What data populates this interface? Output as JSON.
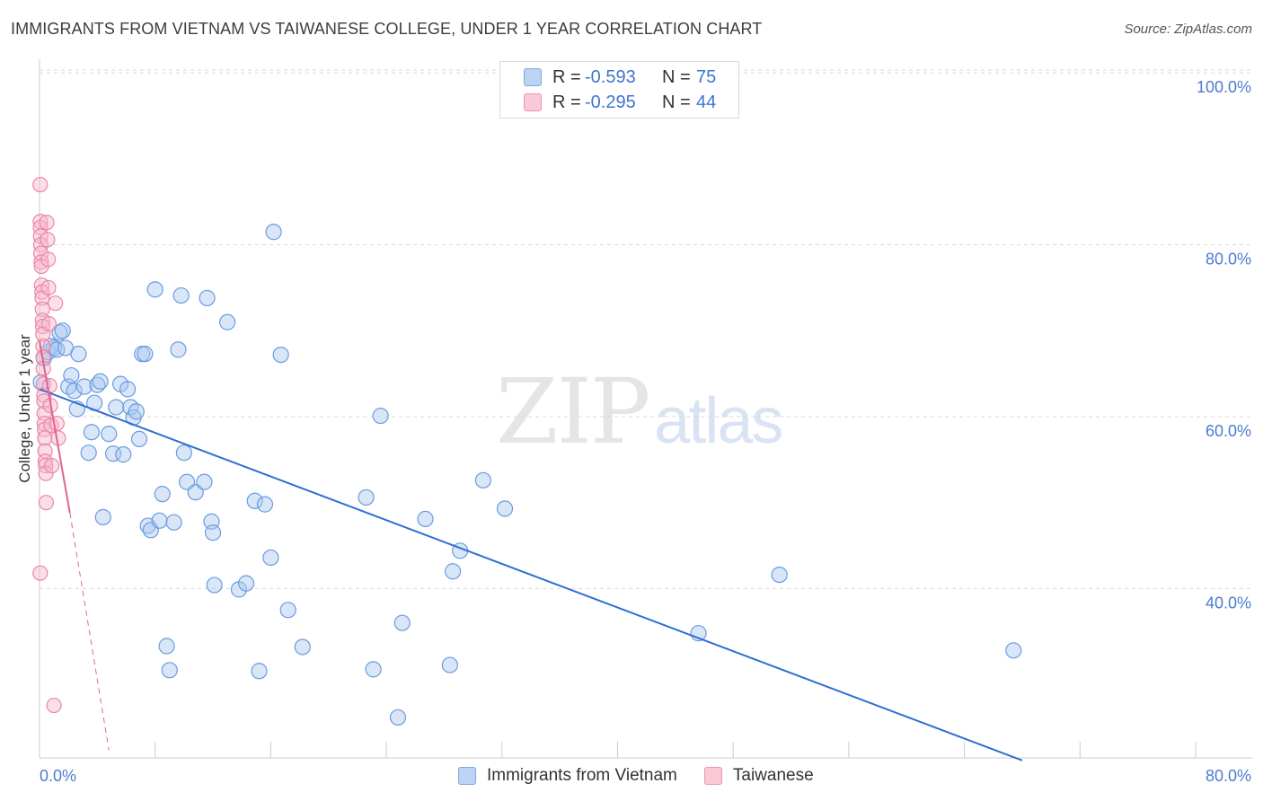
{
  "title": "IMMIGRANTS FROM VIETNAM VS TAIWANESE COLLEGE, UNDER 1 YEAR CORRELATION CHART",
  "source": "Source: ZipAtlas.com",
  "watermark": {
    "zip": "ZIP",
    "atlas": "atlas"
  },
  "legend_top": [
    {
      "r_label": "R =",
      "r_value": "-0.593",
      "n_label": "N =",
      "n_value": "75"
    },
    {
      "r_label": "R =",
      "r_value": "-0.295",
      "n_label": "N =",
      "n_value": "44"
    }
  ],
  "colors": {
    "blue_fill": "#a9c8ef",
    "blue_stroke": "#6b9be0",
    "blue_line": "#2f6fd1",
    "pink_fill": "#f6b8cb",
    "pink_stroke": "#ec87a6",
    "pink_line": "#e2648f",
    "axis_text": "#4a7ccf",
    "grid": "#d9d9d9"
  },
  "chart_data": {
    "type": "scatter",
    "title": "IMMIGRANTS FROM VIETNAM VS TAIWANESE COLLEGE, UNDER 1 YEAR CORRELATION CHART",
    "xlabel": "",
    "ylabel": "College, Under 1 year",
    "xlim": [
      0,
      80
    ],
    "ylim": [
      20,
      104
    ],
    "x_tick_labels": [
      "0.0%",
      "80.0%"
    ],
    "y_tick_labels": [
      "100.0%",
      "80.0%",
      "60.0%",
      "40.0%"
    ],
    "y_ticks": [
      100,
      80,
      60,
      40
    ],
    "grid": true,
    "legend_position": "top-center",
    "series": [
      {
        "name": "Immigrants from Vietnam",
        "color": "#a9c8ef",
        "points": [
          [
            0.1,
            64.0
          ],
          [
            0.3,
            66.8
          ],
          [
            0.6,
            67.5
          ],
          [
            0.8,
            68.2
          ],
          [
            1.0,
            68.0
          ],
          [
            1.2,
            67.8
          ],
          [
            1.4,
            69.8
          ],
          [
            1.6,
            70.0
          ],
          [
            1.8,
            68.0
          ],
          [
            2.0,
            63.5
          ],
          [
            2.2,
            64.8
          ],
          [
            2.4,
            63.0
          ],
          [
            2.6,
            60.9
          ],
          [
            2.7,
            67.3
          ],
          [
            3.1,
            63.5
          ],
          [
            3.4,
            55.8
          ],
          [
            3.6,
            58.2
          ],
          [
            3.8,
            61.6
          ],
          [
            4.0,
            63.7
          ],
          [
            4.2,
            64.1
          ],
          [
            4.4,
            48.3
          ],
          [
            4.8,
            58.0
          ],
          [
            5.1,
            55.7
          ],
          [
            5.3,
            61.1
          ],
          [
            5.6,
            63.8
          ],
          [
            5.8,
            55.6
          ],
          [
            6.1,
            63.2
          ],
          [
            6.3,
            61.1
          ],
          [
            6.5,
            59.9
          ],
          [
            6.7,
            60.6
          ],
          [
            6.9,
            57.4
          ],
          [
            7.1,
            67.3
          ],
          [
            7.3,
            67.3
          ],
          [
            7.5,
            47.3
          ],
          [
            7.7,
            46.8
          ],
          [
            8.0,
            74.8
          ],
          [
            8.3,
            47.9
          ],
          [
            8.5,
            51.0
          ],
          [
            8.8,
            33.3
          ],
          [
            9.0,
            30.5
          ],
          [
            9.3,
            47.7
          ],
          [
            9.6,
            67.8
          ],
          [
            9.8,
            74.1
          ],
          [
            10.0,
            55.8
          ],
          [
            10.2,
            52.4
          ],
          [
            10.8,
            51.2
          ],
          [
            11.4,
            52.4
          ],
          [
            11.6,
            73.8
          ],
          [
            11.9,
            47.8
          ],
          [
            12.0,
            46.5
          ],
          [
            12.1,
            40.4
          ],
          [
            13.0,
            71.0
          ],
          [
            13.8,
            39.9
          ],
          [
            14.3,
            40.6
          ],
          [
            14.9,
            50.2
          ],
          [
            15.2,
            30.4
          ],
          [
            15.6,
            49.8
          ],
          [
            16.0,
            43.6
          ],
          [
            16.2,
            81.5
          ],
          [
            16.7,
            67.2
          ],
          [
            17.2,
            37.5
          ],
          [
            18.2,
            33.2
          ],
          [
            22.6,
            50.6
          ],
          [
            23.1,
            30.6
          ],
          [
            23.6,
            60.1
          ],
          [
            24.8,
            25.0
          ],
          [
            25.1,
            36.0
          ],
          [
            26.7,
            48.1
          ],
          [
            28.4,
            31.1
          ],
          [
            28.6,
            42.0
          ],
          [
            29.1,
            44.4
          ],
          [
            30.7,
            52.6
          ],
          [
            32.2,
            49.3
          ],
          [
            45.6,
            34.8
          ],
          [
            51.2,
            41.6
          ],
          [
            67.4,
            32.8
          ]
        ]
      },
      {
        "name": "Taiwanese",
        "color": "#f6b8cb",
        "points": [
          [
            0.05,
            87.0
          ],
          [
            0.06,
            82.7
          ],
          [
            0.06,
            82.0
          ],
          [
            0.08,
            81.0
          ],
          [
            0.09,
            80.0
          ],
          [
            0.1,
            79.0
          ],
          [
            0.12,
            78.0
          ],
          [
            0.13,
            77.5
          ],
          [
            0.15,
            75.3
          ],
          [
            0.17,
            74.5
          ],
          [
            0.18,
            73.8
          ],
          [
            0.2,
            72.5
          ],
          [
            0.21,
            71.2
          ],
          [
            0.22,
            70.5
          ],
          [
            0.23,
            69.6
          ],
          [
            0.24,
            68.2
          ],
          [
            0.25,
            66.9
          ],
          [
            0.26,
            65.6
          ],
          [
            0.28,
            63.8
          ],
          [
            0.3,
            62.5
          ],
          [
            0.31,
            61.8
          ],
          [
            0.32,
            60.4
          ],
          [
            0.33,
            59.2
          ],
          [
            0.35,
            58.5
          ],
          [
            0.36,
            57.5
          ],
          [
            0.38,
            56.0
          ],
          [
            0.4,
            54.8
          ],
          [
            0.42,
            54.3
          ],
          [
            0.44,
            53.4
          ],
          [
            0.46,
            50.0
          ],
          [
            0.05,
            41.8
          ],
          [
            0.5,
            82.6
          ],
          [
            0.55,
            80.6
          ],
          [
            0.6,
            78.3
          ],
          [
            0.62,
            75.0
          ],
          [
            0.65,
            70.8
          ],
          [
            0.7,
            63.6
          ],
          [
            0.75,
            61.3
          ],
          [
            0.8,
            59.0
          ],
          [
            0.85,
            54.3
          ],
          [
            1.1,
            73.2
          ],
          [
            1.2,
            59.2
          ],
          [
            1.3,
            57.5
          ],
          [
            1.0,
            26.4
          ]
        ]
      }
    ],
    "trendlines": [
      {
        "series": "Immigrants from Vietnam",
        "from": [
          0,
          63.2
        ],
        "to": [
          68.0,
          20.0
        ],
        "style": "solid"
      },
      {
        "series": "Taiwanese",
        "from": [
          0,
          68.8
        ],
        "to": [
          2.1,
          48.8
        ],
        "style": "solid"
      },
      {
        "series": "Taiwanese",
        "from": [
          2.1,
          48.8
        ],
        "to": [
          4.8,
          21.2
        ],
        "style": "dashed"
      }
    ]
  }
}
